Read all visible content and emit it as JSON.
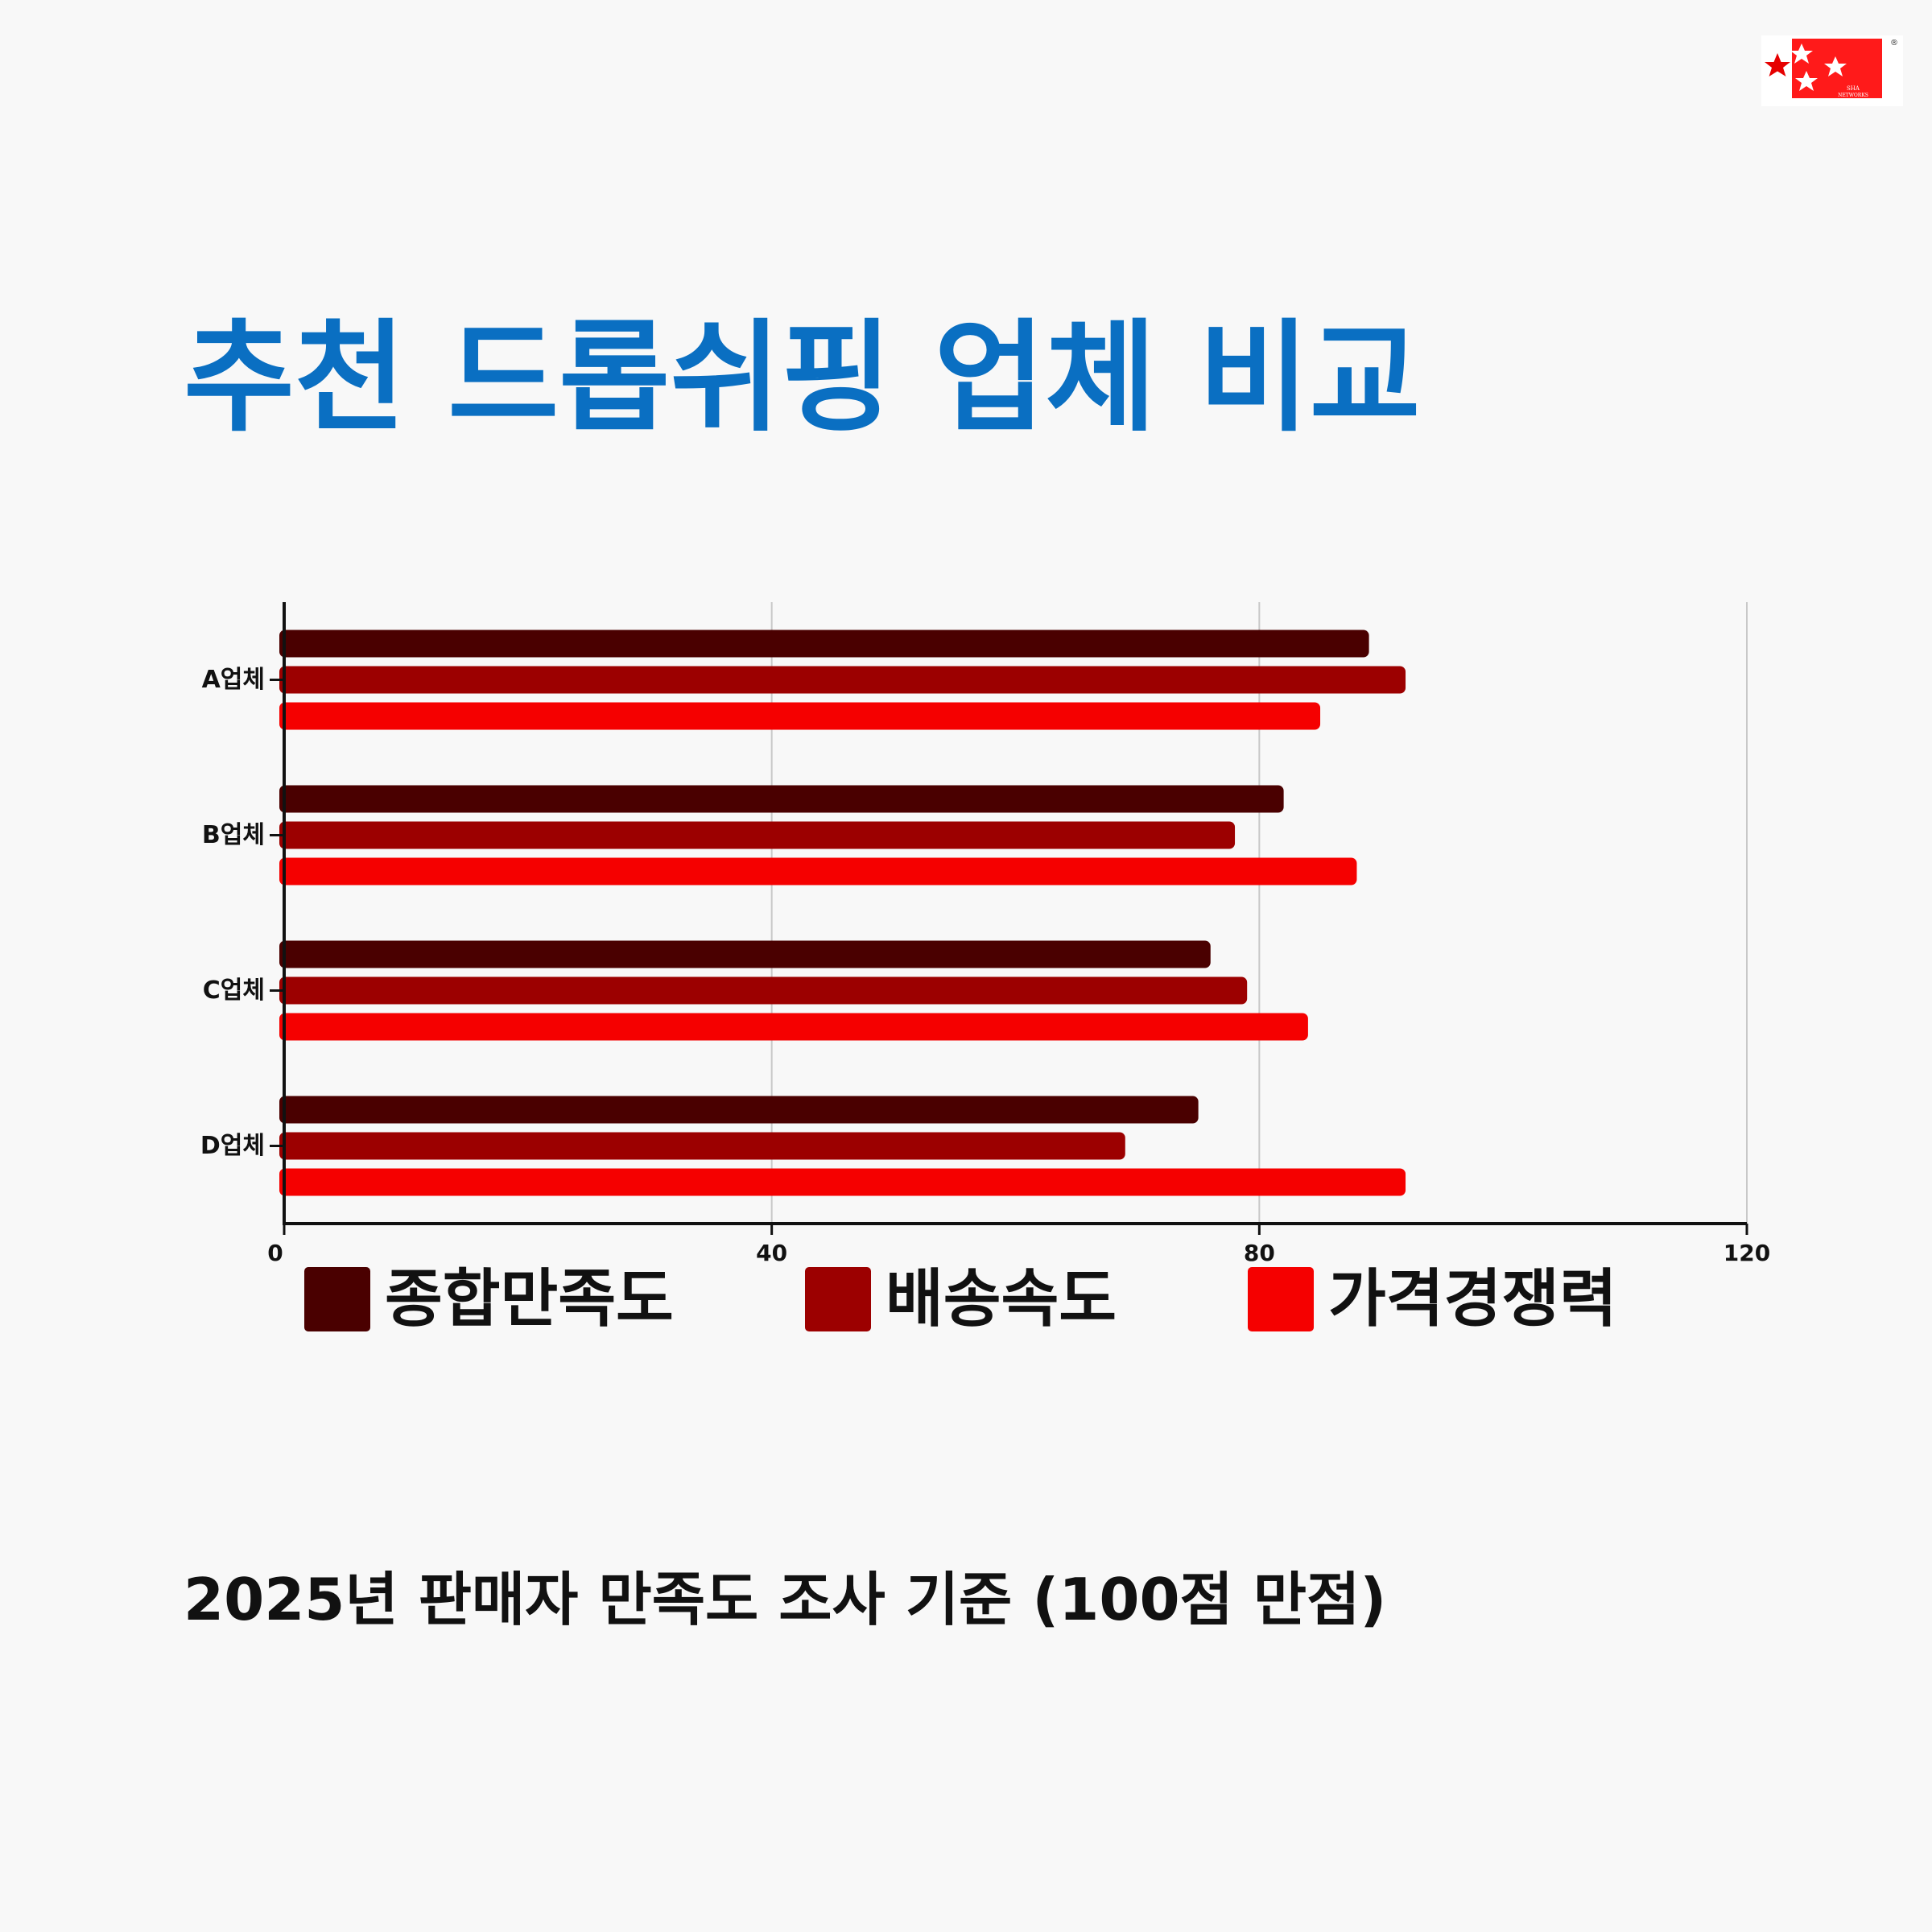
{
  "title": "추천 드롭쉬핑 업체 비교",
  "footnote": "2025년 판매자 만족도 조사 기준 (100점 만점)",
  "logo": {
    "icon": "stars-logo-icon",
    "text_lines": [
      "SHA",
      "NETWORKS"
    ],
    "registered": "®",
    "colors": {
      "box": "#ff1a1a",
      "star": "#ffffff",
      "outer_star": "#e60000"
    }
  },
  "chart_data": {
    "type": "bar",
    "orientation": "horizontal",
    "categories": [
      "A업체",
      "B업체",
      "C업체",
      "D업체"
    ],
    "series": [
      {
        "name": "종합만족도",
        "color": "#4a0000",
        "values": [
          89,
          82,
          76,
          75
        ]
      },
      {
        "name": "배송속도",
        "color": "#9c0000",
        "values": [
          92,
          78,
          79,
          69
        ]
      },
      {
        "name": "가격경쟁력",
        "color": "#f50000",
        "values": [
          85,
          88,
          84,
          92
        ]
      }
    ],
    "xlim": [
      0,
      120
    ],
    "xticks": [
      0,
      40,
      80,
      120
    ],
    "xlabel": "",
    "ylabel": "",
    "grid": "vertical",
    "legend": "bottom"
  }
}
